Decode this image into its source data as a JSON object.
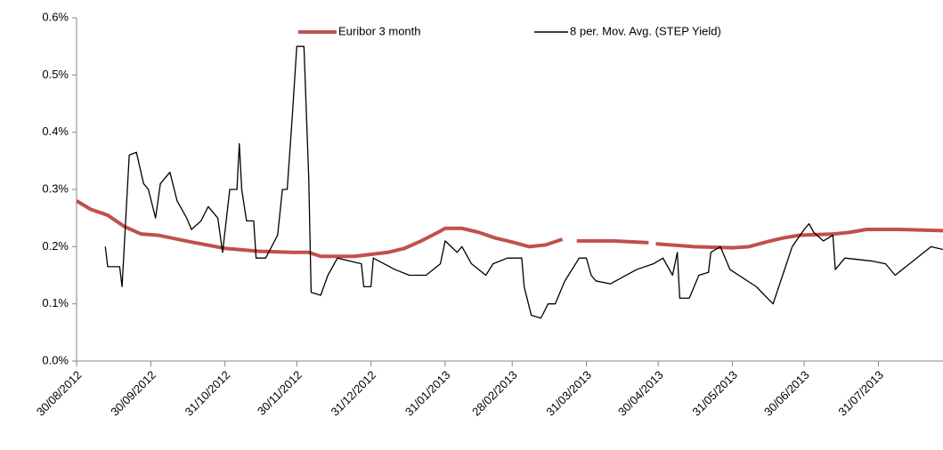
{
  "chart_data": {
    "type": "line",
    "legend": "top",
    "grid": false,
    "xlim": [
      "30/08/2012",
      "27/08/2013"
    ],
    "xticks": [
      "30/08/2012",
      "30/09/2012",
      "31/10/2012",
      "30/11/2012",
      "31/12/2012",
      "31/01/2013",
      "28/02/2013",
      "31/03/2013",
      "30/04/2013",
      "31/05/2013",
      "30/06/2013",
      "31/07/2013"
    ],
    "ylim": [
      0,
      0.6
    ],
    "yticks": [
      {
        "value": 0,
        "label": "0.0%"
      },
      {
        "value": 0.1,
        "label": "0.1%"
      },
      {
        "value": 0.2,
        "label": "0.2%"
      },
      {
        "value": 0.3,
        "label": "0.3%"
      },
      {
        "value": 0.4,
        "label": "0.4%"
      },
      {
        "value": 0.5,
        "label": "0.5%"
      },
      {
        "value": 0.6,
        "label": "0.6%"
      }
    ],
    "series": [
      {
        "name": "Euribor 3 month",
        "color": "#c0504d",
        "x": [
          "30/08/2012",
          "05/09/2012",
          "12/09/2012",
          "19/09/2012",
          "26/09/2012",
          "03/10/2012",
          "17/10/2012",
          "31/10/2012",
          "14/11/2012",
          "28/11/2012",
          "05/12/2012",
          "10/12/2012",
          "24/12/2012",
          "07/01/2013",
          "14/01/2013",
          "21/01/2013",
          "28/01/2013",
          "31/01/2013",
          "07/02/2013",
          "14/02/2013",
          "21/02/2013",
          "28/02/2013",
          "07/03/2013",
          "14/03/2013",
          "21/03/2013",
          "24/03/2013",
          "27/03/2013",
          "11/04/2013",
          "26/04/2013",
          "27/04/2013",
          "29/04/2013",
          "15/05/2013",
          "31/05/2013",
          "07/06/2013",
          "14/06/2013",
          "21/06/2013",
          "28/06/2013",
          "12/07/2013",
          "19/07/2013",
          "26/07/2013",
          "09/08/2013",
          "27/08/2013"
        ],
        "values": [
          0.28,
          0.265,
          0.255,
          0.235,
          0.222,
          0.22,
          0.208,
          0.197,
          0.192,
          0.19,
          0.19,
          0.183,
          0.183,
          0.19,
          0.197,
          0.21,
          0.225,
          0.232,
          0.232,
          0.225,
          0.215,
          0.208,
          0.2,
          0.203,
          0.213,
          null,
          0.21,
          0.21,
          0.207,
          null,
          0.205,
          0.2,
          0.198,
          0.2,
          0.208,
          0.215,
          0.22,
          0.222,
          0.225,
          0.23,
          0.23,
          0.228
        ]
      },
      {
        "name": "8 per. Mov. Avg. (STEP Yield)",
        "color": "#000000",
        "x": [
          "11/09/2012",
          "12/09/2012",
          "17/09/2012",
          "18/09/2012",
          "21/09/2012",
          "24/09/2012",
          "27/09/2012",
          "29/09/2012",
          "02/10/2012",
          "04/10/2012",
          "08/10/2012",
          "11/10/2012",
          "15/10/2012",
          "17/10/2012",
          "21/10/2012",
          "24/10/2012",
          "28/10/2012",
          "30/10/2012",
          "02/11/2012",
          "05/11/2012",
          "06/11/2012",
          "07/11/2012",
          "09/11/2012",
          "12/11/2012",
          "13/11/2012",
          "17/11/2012",
          "22/11/2012",
          "24/11/2012",
          "26/11/2012",
          "28/11/2012",
          "30/11/2012",
          "03/12/2012",
          "05/12/2012",
          "06/12/2012",
          "10/12/2012",
          "13/12/2012",
          "17/12/2012",
          "27/12/2012",
          "28/12/2012",
          "31/12/2012",
          "01/01/2013",
          "10/01/2013",
          "16/01/2013",
          "23/01/2013",
          "29/01/2013",
          "31/01/2013",
          "05/02/2013",
          "07/02/2013",
          "11/02/2013",
          "17/02/2013",
          "20/02/2013",
          "26/02/2013",
          "04/03/2013",
          "05/03/2013",
          "08/03/2013",
          "12/03/2013",
          "15/03/2013",
          "18/03/2013",
          "22/03/2013",
          "28/03/2013",
          "31/03/2013",
          "02/04/2013",
          "04/04/2013",
          "10/04/2013",
          "21/04/2013",
          "28/04/2013",
          "02/05/2013",
          "06/05/2013",
          "08/05/2013",
          "09/05/2013",
          "13/05/2013",
          "17/05/2013",
          "21/05/2013",
          "22/05/2013",
          "26/05/2013",
          "30/05/2013",
          "10/06/2013",
          "17/06/2013",
          "21/06/2013",
          "25/06/2013",
          "30/06/2013",
          "02/07/2013",
          "04/07/2013",
          "08/07/2013",
          "12/07/2013",
          "13/07/2013",
          "17/07/2013",
          "28/07/2013",
          "03/08/2013",
          "07/08/2013",
          "16/08/2013",
          "22/08/2013",
          "27/08/2013"
        ],
        "values": [
          0.2,
          0.165,
          0.165,
          0.13,
          0.36,
          0.365,
          0.31,
          0.3,
          0.25,
          0.31,
          0.33,
          0.28,
          0.25,
          0.23,
          0.245,
          0.27,
          0.25,
          0.19,
          0.3,
          0.3,
          0.38,
          0.3,
          0.245,
          0.245,
          0.18,
          0.18,
          0.22,
          0.3,
          0.3,
          0.42,
          0.55,
          0.55,
          0.32,
          0.12,
          0.115,
          0.15,
          0.18,
          0.17,
          0.13,
          0.13,
          0.18,
          0.16,
          0.15,
          0.15,
          0.17,
          0.21,
          0.19,
          0.2,
          0.17,
          0.15,
          0.17,
          0.18,
          0.18,
          0.13,
          0.08,
          0.075,
          0.1,
          0.1,
          0.14,
          0.18,
          0.18,
          0.15,
          0.14,
          0.135,
          0.16,
          0.17,
          0.18,
          0.15,
          0.19,
          0.11,
          0.11,
          0.15,
          0.155,
          0.19,
          0.2,
          0.16,
          0.13,
          0.1,
          0.15,
          0.2,
          0.23,
          0.24,
          0.225,
          0.21,
          0.22,
          0.16,
          0.18,
          0.175,
          0.17,
          0.15,
          0.18,
          0.2,
          0.195
        ]
      }
    ]
  }
}
